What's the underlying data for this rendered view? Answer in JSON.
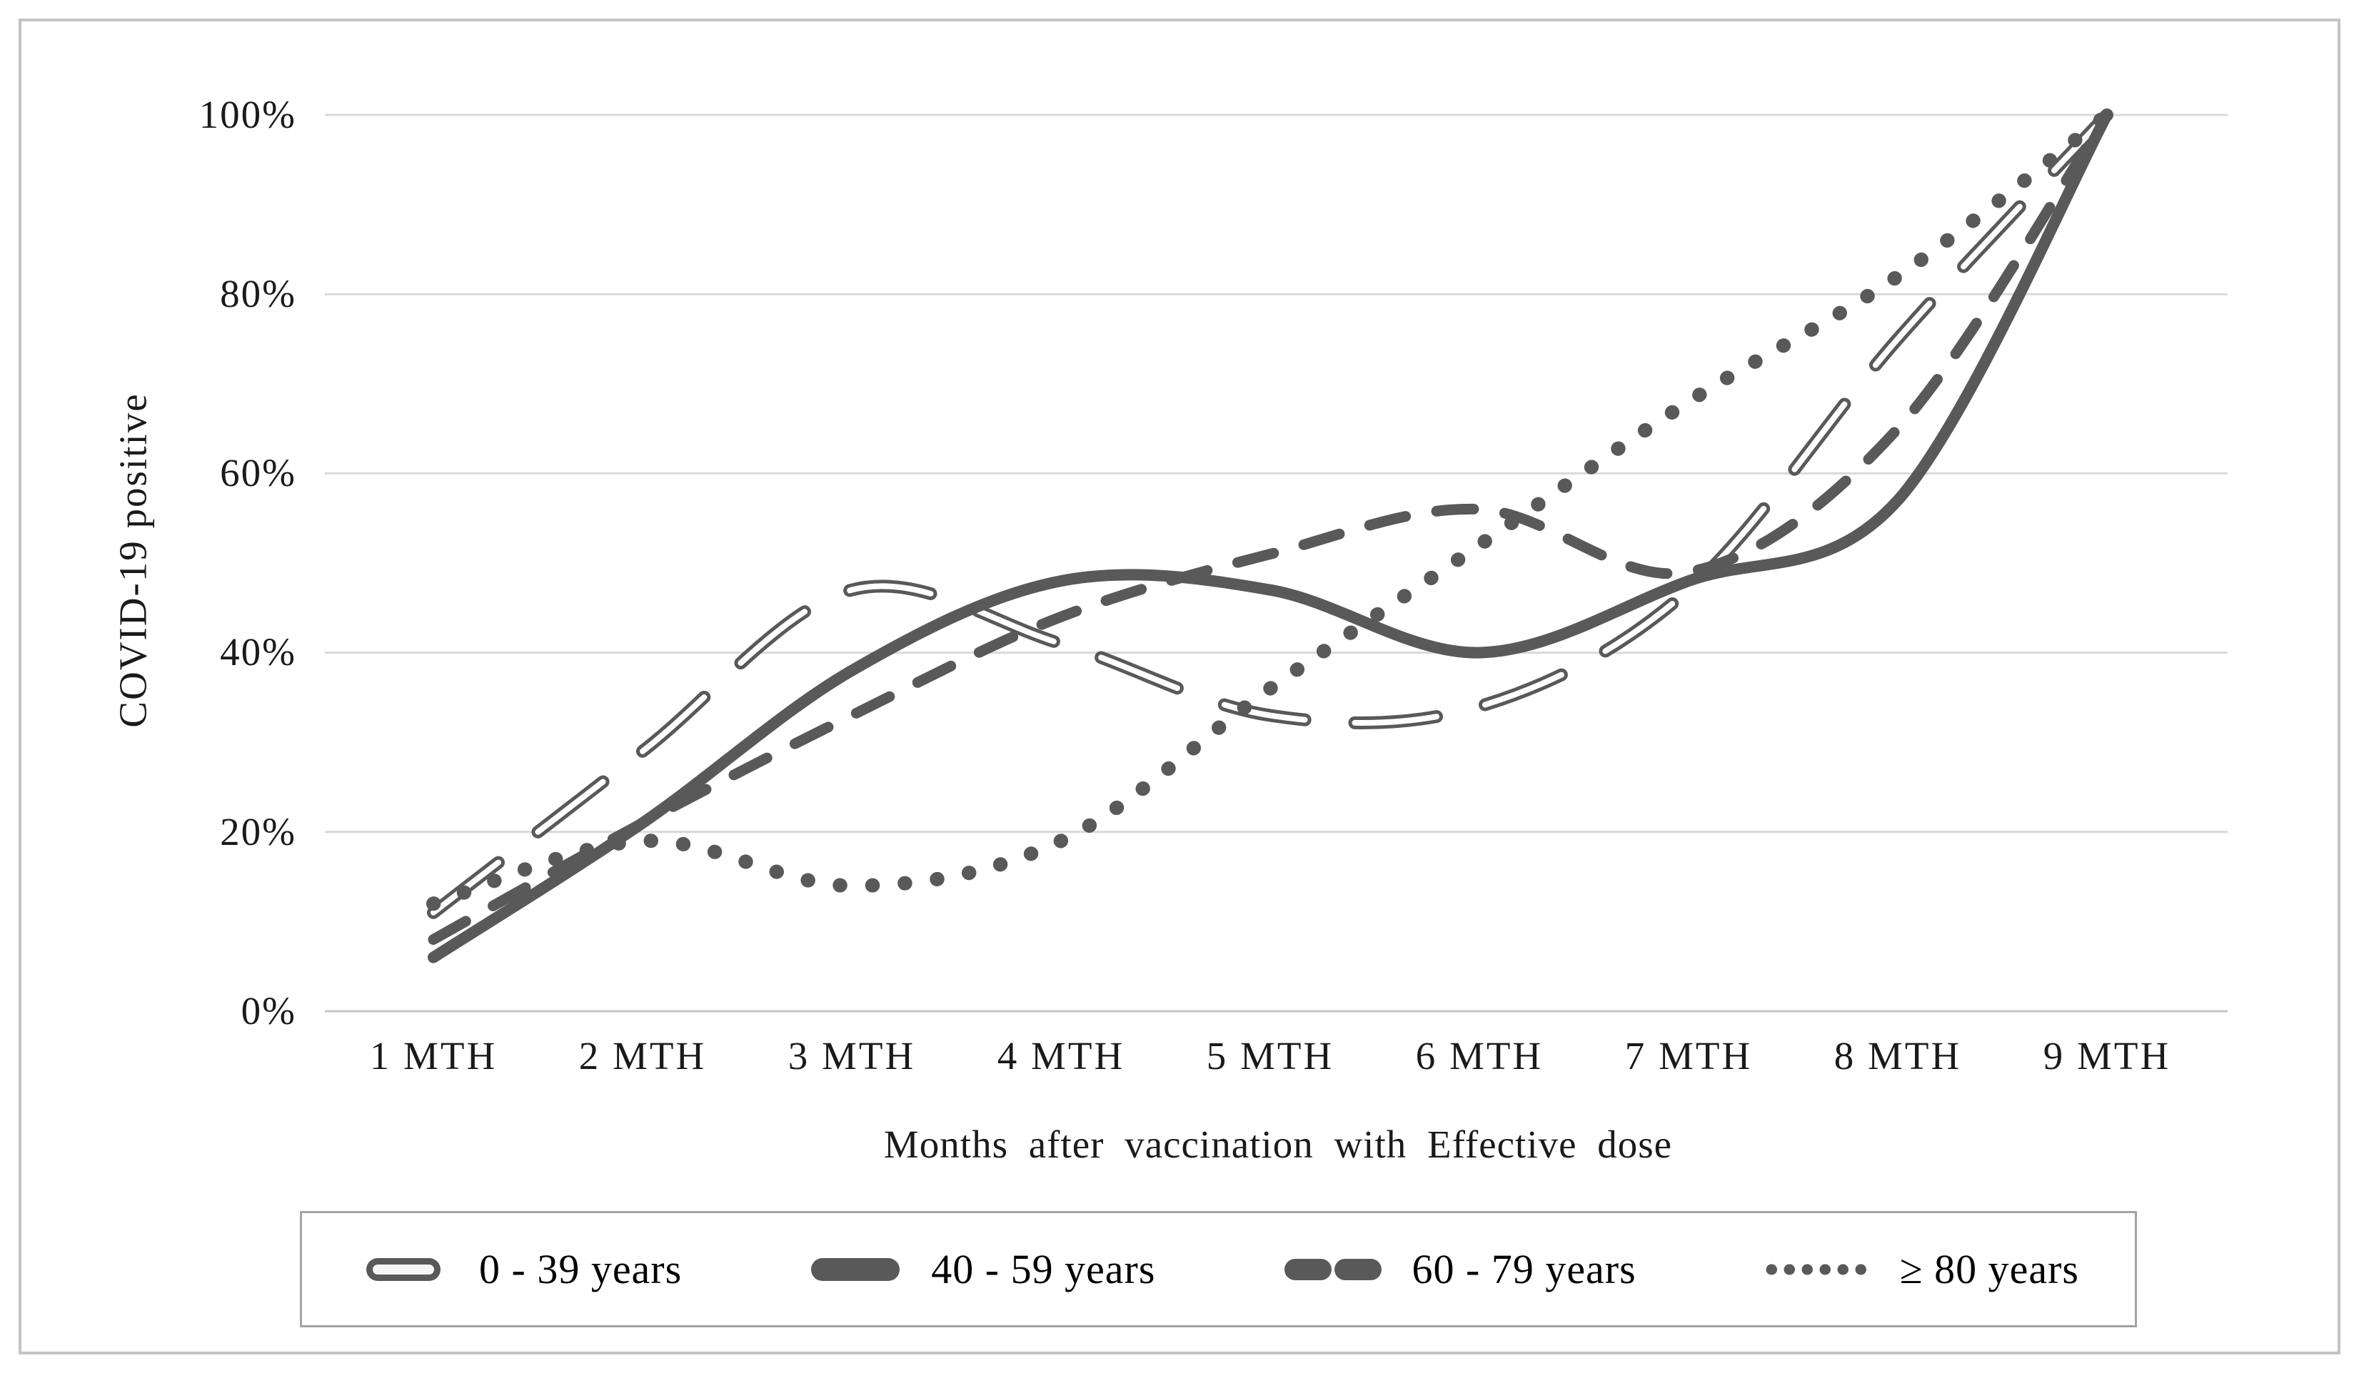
{
  "y_axis": {
    "title": "COVID-19 positive",
    "ticks": [
      "100%",
      "80%",
      "60%",
      "40%",
      "20%",
      "0%"
    ]
  },
  "x_axis": {
    "title": "Months after vaccination with Effective dose",
    "ticks": [
      "1 MTH",
      "2 MTH",
      "3 MTH",
      "4 MTH",
      "5 MTH",
      "6 MTH",
      "7 MTH",
      "8 MTH",
      "9 MTH"
    ]
  },
  "legend": {
    "items": [
      {
        "label": "0 - 39 years",
        "marker": "long-dash-outline"
      },
      {
        "label": "40 - 59 years",
        "marker": "solid"
      },
      {
        "label": "60 - 79 years",
        "marker": "dash"
      },
      {
        "label": "≥ 80 years",
        "marker": "dot"
      }
    ]
  },
  "colors": {
    "line": "#595959",
    "gridline": "#d9d9d9",
    "axis_line": "#c6c6c6",
    "legend_border": "#a3a3a3",
    "figure_border": "#c4c4c4",
    "text": "#1a1a1a"
  },
  "chart_data": {
    "type": "line",
    "title": "",
    "xlabel": "Months after vaccination with Effective dose",
    "ylabel": "COVID-19 positive",
    "categories": [
      "1 MTH",
      "2 MTH",
      "3 MTH",
      "4 MTH",
      "5 MTH",
      "6 MTH",
      "7 MTH",
      "8 MTH",
      "9 MTH"
    ],
    "yticks": [
      "100%",
      "80%",
      "60%",
      "40%",
      "20%",
      "0%"
    ],
    "ylim": [
      0,
      100
    ],
    "grid": true,
    "line_smoothing": true,
    "legend_position": "bottom",
    "series": [
      {
        "name": "0 - 39 years",
        "style": "long-dash-outline",
        "values": [
          11,
          29,
          47,
          41,
          33,
          34,
          47,
          75,
          100
        ]
      },
      {
        "name": "40 - 59 years",
        "style": "solid",
        "values": [
          6,
          21,
          38,
          48,
          47,
          40,
          48,
          57,
          100
        ]
      },
      {
        "name": "60 - 79 years",
        "style": "dash",
        "values": [
          8,
          21,
          33,
          44,
          51,
          56,
          49,
          65,
          100
        ]
      },
      {
        "name": "≥ 80 years",
        "style": "dot",
        "values": [
          12,
          19,
          14,
          19,
          36,
          52,
          68,
          82,
          100
        ]
      }
    ]
  }
}
